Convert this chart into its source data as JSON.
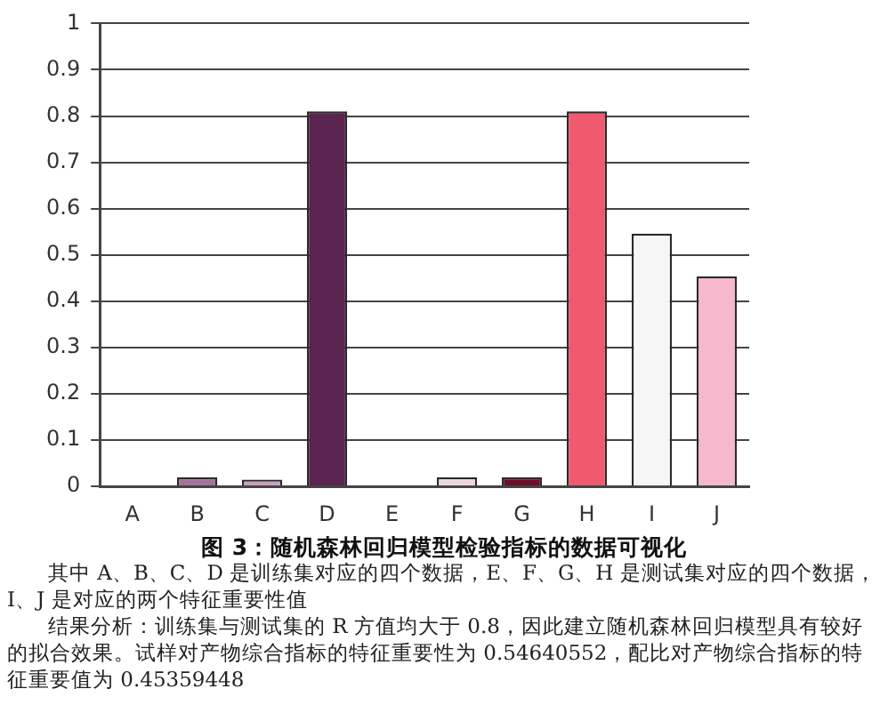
{
  "chart_data": {
    "type": "bar",
    "title": "图 3：随机森林回归模型检验指标的数据可视化",
    "categories": [
      "A",
      "B",
      "C",
      "D",
      "E",
      "F",
      "G",
      "H",
      "I",
      "J"
    ],
    "values": [
      0,
      0.02,
      0.015,
      0.81,
      0,
      0.02,
      0.02,
      0.81,
      0.546,
      0.454
    ],
    "colors": [
      "#a5739a",
      "#a5739a",
      "#c9a0c0",
      "#5a2350",
      "#8a5a80",
      "#ead5e0",
      "#6d0f2a",
      "#ef5a6e",
      "#f6f6f6",
      "#f6b8cc"
    ],
    "ylim": [
      0,
      1
    ],
    "yticks": [
      0,
      0.1,
      0.2,
      0.3,
      0.4,
      0.5,
      0.6,
      0.7,
      0.8,
      0.9,
      1
    ],
    "grid": "y",
    "legend": false,
    "annotations": [
      "其中 A、B、C、D 是训练集对应的四个数据，E、F、G、H 是测试集对应的四个数据，I、J 是对应的两个特征重要性值",
      "结果分析：训练集与测试集的 R 方值均大于 0.8，因此建立随机森林回归模型具有较好的拟合效果。试样对产物综合指标的特征重要性为 0.54640552，配比对产物综合指标的特征重要值为 0.45359448"
    ]
  }
}
